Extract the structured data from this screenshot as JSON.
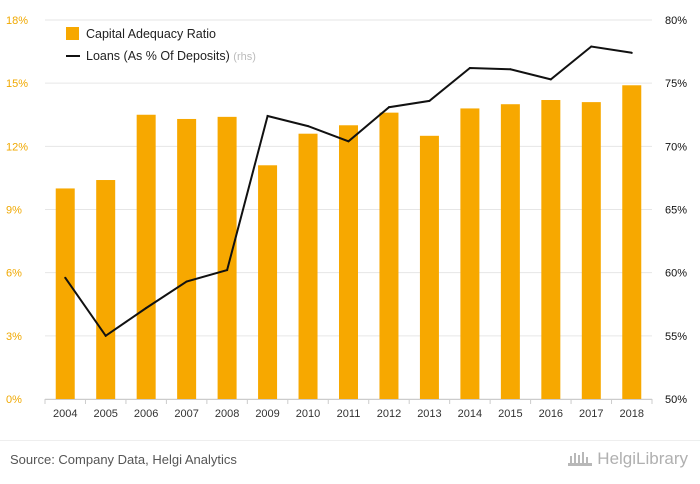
{
  "chart_data": {
    "type": "bar",
    "categories": [
      "2004",
      "2005",
      "2006",
      "2007",
      "2008",
      "2009",
      "2010",
      "2011",
      "2012",
      "2013",
      "2014",
      "2015",
      "2016",
      "2017",
      "2018"
    ],
    "series": [
      {
        "name": "Capital Adequacy Ratio",
        "type": "bar",
        "axis": "left",
        "color": "#f7a800",
        "values": [
          10.0,
          10.4,
          13.5,
          13.3,
          13.4,
          11.1,
          12.6,
          13.0,
          13.6,
          12.5,
          13.8,
          14.0,
          14.2,
          14.1,
          14.9
        ]
      },
      {
        "name": "Loans (As % Of Deposits)",
        "name_suffix": "(rhs)",
        "type": "line",
        "axis": "right",
        "color": "#111111",
        "values": [
          59.6,
          55.0,
          57.2,
          59.3,
          60.2,
          72.4,
          71.6,
          70.4,
          73.1,
          73.6,
          76.2,
          76.1,
          75.3,
          77.9,
          77.4
        ]
      }
    ],
    "y_left": {
      "min": 0,
      "max": 18,
      "ticks": [
        0,
        3,
        6,
        9,
        12,
        15,
        18
      ],
      "tick_labels": [
        "0%",
        "3%",
        "6%",
        "9%",
        "12%",
        "15%",
        "18%"
      ],
      "color": "#f0a800"
    },
    "y_right": {
      "min": 50,
      "max": 80,
      "ticks": [
        50,
        55,
        60,
        65,
        70,
        75,
        80
      ],
      "tick_labels": [
        "50%",
        "55%",
        "60%",
        "65%",
        "70%",
        "75%",
        "80%"
      ]
    },
    "grid": true,
    "legend_position": "top-left",
    "title": "",
    "xlabel": "",
    "ylabel": ""
  },
  "footer": {
    "source": "Source: Company Data, Helgi Analytics",
    "brand": "HelgiLibrary"
  }
}
